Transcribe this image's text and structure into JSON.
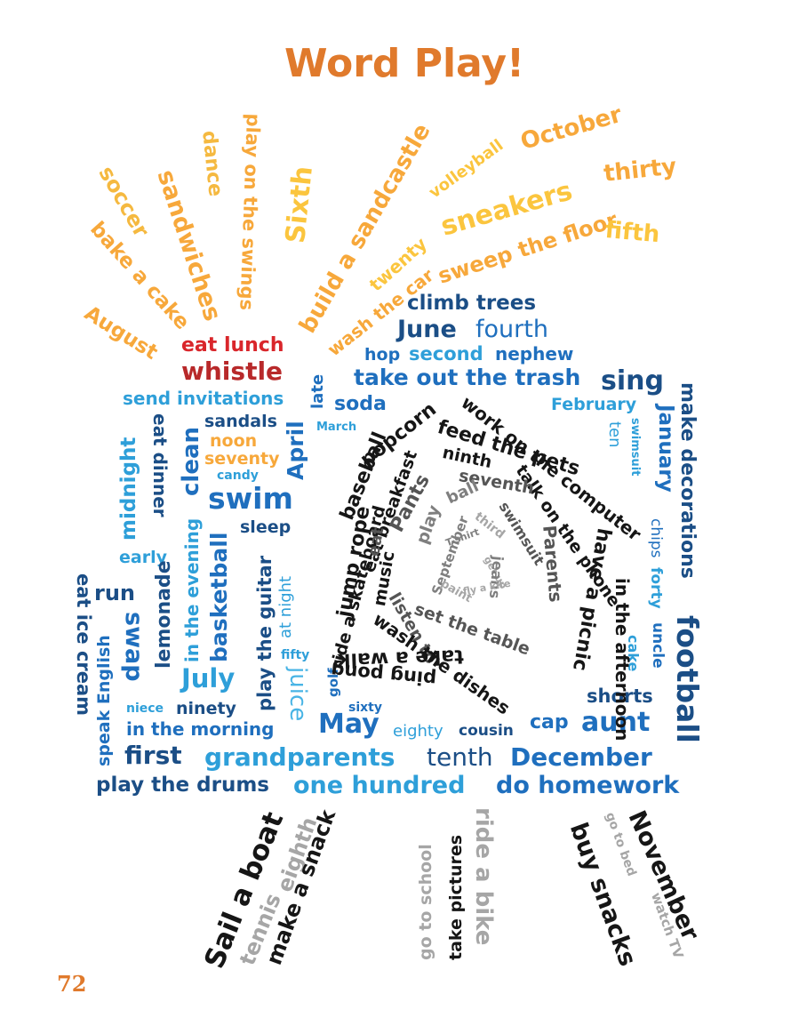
{
  "title": "Word Play!",
  "page_number": "72",
  "colors": {
    "title_orange": "#e07a2c",
    "sun_orange": "#f7a83b",
    "red": "#d9262b",
    "dark_blue": "#1b4e86",
    "light_blue": "#2e9fd9",
    "black": "#161616",
    "gray": "#a6a6a6"
  },
  "sun": [
    "August",
    "bake a cake",
    "soccer",
    "sandwiches",
    "dance",
    "play on the swings",
    "Sixth",
    "build a sandcastle",
    "twenty",
    "wash the car",
    "volleyball",
    "sneakers",
    "sweep the floor",
    "October",
    "thirty",
    "fifth"
  ],
  "top": [
    "climb trees",
    "June",
    "fourth",
    "hop",
    "second",
    "nephew",
    "eat lunch",
    "whistle",
    "take out the trash",
    "sing",
    "late",
    "send invitations",
    "soda",
    "March",
    "February"
  ],
  "left": [
    "eat ice cream",
    "midnight",
    "eat dinner",
    "clean",
    "sandals",
    "noon",
    "seventy",
    "April",
    "candy",
    "swim",
    "early",
    "sleep",
    "lemonade",
    "in the evening",
    "basketball",
    "play the guitar",
    "at night",
    "run",
    "swap",
    "speak English",
    "July",
    "fifty",
    "juice",
    "golf",
    "sixty",
    "niece",
    "ninety",
    "in the morning",
    "May",
    "eighty",
    "cousin"
  ],
  "right": [
    "January",
    "ten",
    "swimsuit",
    "chips",
    "forty",
    "make decorations",
    "uncle",
    "cake",
    "football",
    "shorts",
    "cap",
    "aunt"
  ],
  "bottom": [
    "first",
    "grandparents",
    "tenth",
    "December",
    "play the drums",
    "one hundred",
    "do homework"
  ],
  "spiral": [
    "popcorn",
    "work on the computer",
    "feed the pets",
    "in the afternoon",
    "ride a skateboard",
    "baseball",
    "ninth",
    "talk on the phone",
    "have a picnic",
    "eat breakfast",
    "seventh",
    "jump rope",
    "Pants",
    "ball",
    "Parents",
    "play",
    "third",
    "swimsuit",
    "September",
    "T-shirt",
    "get up",
    "eat",
    "music",
    "listen to",
    "jeans",
    "set the table",
    "fly a kite",
    "paint",
    "wash the dishes",
    "ping pong",
    "take a walk"
  ],
  "legs": [
    "Sail a boat",
    "tennis",
    "eighth",
    "make a snack",
    "go to school",
    "take pictures",
    "ride a bike",
    "buy snacks",
    "go to bed",
    "watch TV",
    "November"
  ]
}
